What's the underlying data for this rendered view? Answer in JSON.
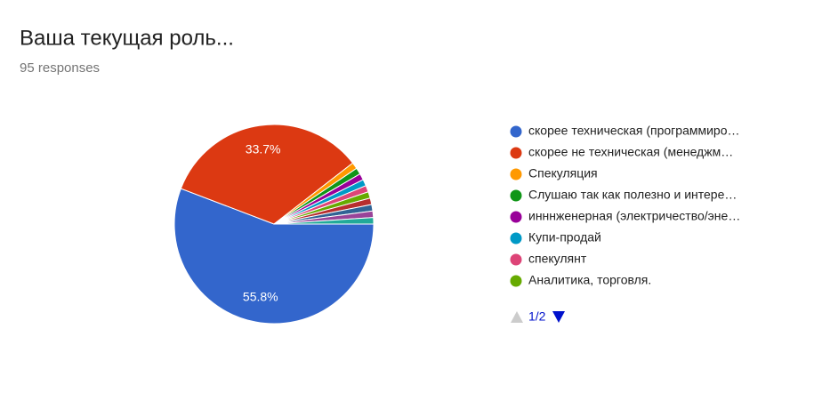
{
  "chart_data": {
    "type": "pie",
    "title": "Ваша текущая роль...",
    "subtitle": "95 responses",
    "categories": [
      "скорее техническая (программиро…",
      "скорее не техническая (менеджм…",
      "Спекуляция",
      "Слушаю так как полезно и интере…",
      "инннженерная (электричество/эне…",
      "Купи-продай",
      "спекулянт",
      "Аналитика, торговля.",
      null,
      null,
      null,
      null
    ],
    "values": [
      55.8,
      33.7,
      1.05,
      1.05,
      1.05,
      1.05,
      1.05,
      1.05,
      1.05,
      1.05,
      1.05,
      1.05
    ],
    "value_labels": [
      "55.8%",
      "33.7%",
      null,
      null,
      null,
      null,
      null,
      null,
      null,
      null,
      null,
      null
    ],
    "colors": [
      "#3366cc",
      "#dc3912",
      "#ff9900",
      "#109618",
      "#990099",
      "#0099c6",
      "#dd4477",
      "#66aa00",
      "#b82e2e",
      "#316395",
      "#994499",
      "#22aa99"
    ],
    "legend_page": "1/2"
  }
}
